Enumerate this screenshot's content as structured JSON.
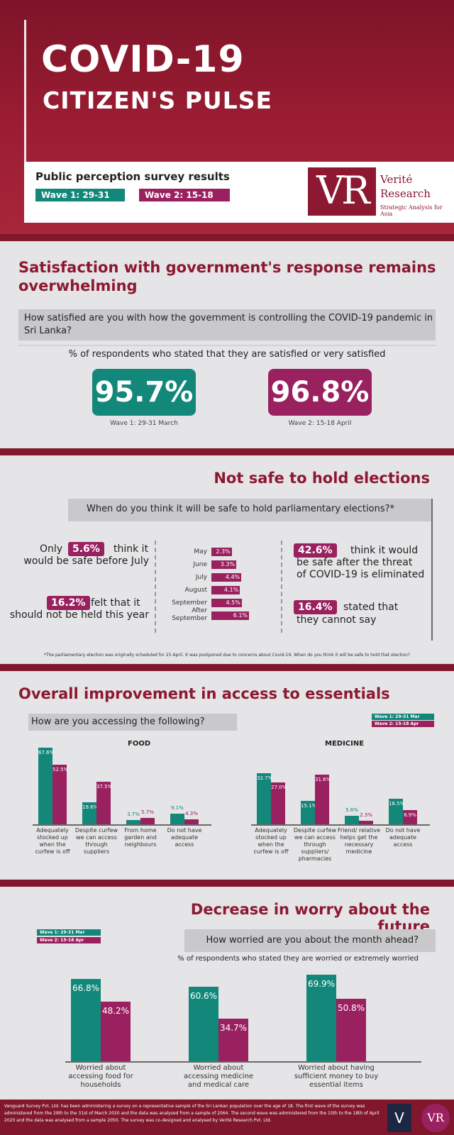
{
  "header": {
    "title_line1": "COVID-19",
    "title_line2": "CITIZEN'S PULSE",
    "subtitle": "Public perception survey results",
    "wave1": "Wave 1: 29-31 Mar",
    "wave2": "Wave 2: 15-18 Apr",
    "logo_mark": "VR",
    "logo_name_line1": "Verité",
    "logo_name_line2": "Research",
    "logo_tagline": "Strategic Analysis for Asia"
  },
  "colors": {
    "wave1": "#12877a",
    "wave2": "#9a2160",
    "accent": "#8c1831"
  },
  "satisfaction": {
    "title": "Satisfaction with government's response remains overwhelming",
    "question": "How satisfied are you with how the government is controlling the COVID-19 pandemic in Sri Lanka?",
    "subtitle": "% of respondents who stated that they are satisfied or very satisfied",
    "wave1_value": "95.7%",
    "wave1_label": "Wave 1: 29-31 March",
    "wave2_value": "96.8%",
    "wave2_label": "Wave 2: 15-18 April"
  },
  "elections": {
    "title": "Not safe to hold elections",
    "question": "When do you think it will be safe to hold parliamentary elections?*",
    "stmt_a": {
      "pre": "Only",
      "value": "5.6%",
      "post": "think it",
      "line2": "would be safe before July"
    },
    "stmt_b": {
      "value": "16.2%",
      "post": "felt that it",
      "line2": "should not be held this year"
    },
    "stmt_c": {
      "value": "42.6%",
      "post": "think it would",
      "line2": "be safe after the threat",
      "line3": "of COVID-19 is eliminated"
    },
    "stmt_d": {
      "value": "16.4%",
      "post": "stated that",
      "line2": "they cannot say"
    },
    "footnote": "*The parliamentary election was originally scheduled for 25 April. It was postponed due to concerns about Covid-19. When do you think it will be safe to hold that election?"
  },
  "access": {
    "title": "Overall improvement in access to essentials",
    "question": "How are you accessing the following?",
    "legend_wave1": "Wave 1: 29-31 Mar",
    "legend_wave2": "Wave 2: 15-18 Apr",
    "food_title": "FOOD",
    "medicine_title": "MEDICINE"
  },
  "worry": {
    "title": "Decrease in worry about the future",
    "question": "How worried are you about the month ahead?",
    "subtitle": "% of respondents who stated they are worried or extremely worried",
    "legend_wave1": "Wave 1: 29-31 Mar",
    "legend_wave2": "Wave 2: 15-18 Apr"
  },
  "footer": {
    "text": "Vanguard Survey Pvt. Ltd. has been administering a survey on a representative sample of the Sri Lankan population over the age of 18. The first wave of the survey was administered from the 29th to the 31st of March 2020 and the data was analysed from a sample of 2064. The second wave was administered from the 15th to the 18th of April 2020 and the data was analysed from a sample 2050. The survey was co-designed and analysed by Verité Research Pvt. Ltd.",
    "logo1_mark": "V",
    "logo2_mark": "VR"
  },
  "chart_data": [
    {
      "type": "bar",
      "id": "elections",
      "categories": [
        "May",
        "June",
        "July",
        "August",
        "September",
        "After September"
      ],
      "series": [
        {
          "values": [
            2.3,
            3.3,
            4.4,
            4.1,
            4.5,
            6.1
          ]
        }
      ],
      "value_labels": [
        "2.3%",
        "3.3%",
        "4.4%",
        "4.1%",
        "4.5%",
        "6.1%"
      ],
      "orientation": "horizontal"
    },
    {
      "type": "bar",
      "id": "food",
      "title": "FOOD",
      "categories": [
        "Adequately stocked up when the curfew is off",
        "Despite curfew we can access through suppliers",
        "From home garden and neighbours",
        "Do not have adequate access"
      ],
      "series": [
        {
          "name": "Wave 1: 29-31 Mar",
          "values": [
            67.6,
            19.6,
            3.7,
            9.1
          ],
          "labels": [
            "67.6%",
            "19.6%",
            "3.7%",
            "9.1%"
          ]
        },
        {
          "name": "Wave 2: 15-18 Apr",
          "values": [
            52.5,
            37.5,
            5.7,
            4.3
          ],
          "labels": [
            "52.5%",
            "37.5%",
            "5.7%",
            "4.3%"
          ]
        }
      ]
    },
    {
      "type": "bar",
      "id": "medicine",
      "title": "MEDICINE",
      "categories": [
        "Adequately stocked up when the curfew is off",
        "Despite curfew we can access through suppliers/ pharmacies",
        "Friend/ relative helps get the necessary medicine",
        "Do not have adequate access"
      ],
      "series": [
        {
          "name": "Wave 1: 29-31 Mar",
          "values": [
            32.7,
            15.1,
            5.6,
            16.5
          ],
          "labels": [
            "32.7%",
            "15.1%",
            "5.6%",
            "16.5%"
          ]
        },
        {
          "name": "Wave 2: 15-18 Apr",
          "values": [
            27.0,
            31.6,
            2.3,
            8.9
          ],
          "labels": [
            "27.0%",
            "31.6%",
            "2.3%",
            "8.9%"
          ]
        }
      ]
    },
    {
      "type": "bar",
      "id": "worry",
      "categories": [
        "Worried about accessing food for households",
        "Worried about accessing medicine and medical care",
        "Worried about having sufficient money to buy essential items"
      ],
      "series": [
        {
          "name": "Wave 1: 29-31 Mar",
          "values": [
            66.8,
            60.6,
            69.9
          ],
          "labels": [
            "66.8%",
            "60.6%",
            "69.9%"
          ]
        },
        {
          "name": "Wave 2: 15-18 Apr",
          "values": [
            48.2,
            34.7,
            50.8
          ],
          "labels": [
            "48.2%",
            "34.7%",
            "50.8%"
          ]
        }
      ]
    }
  ]
}
